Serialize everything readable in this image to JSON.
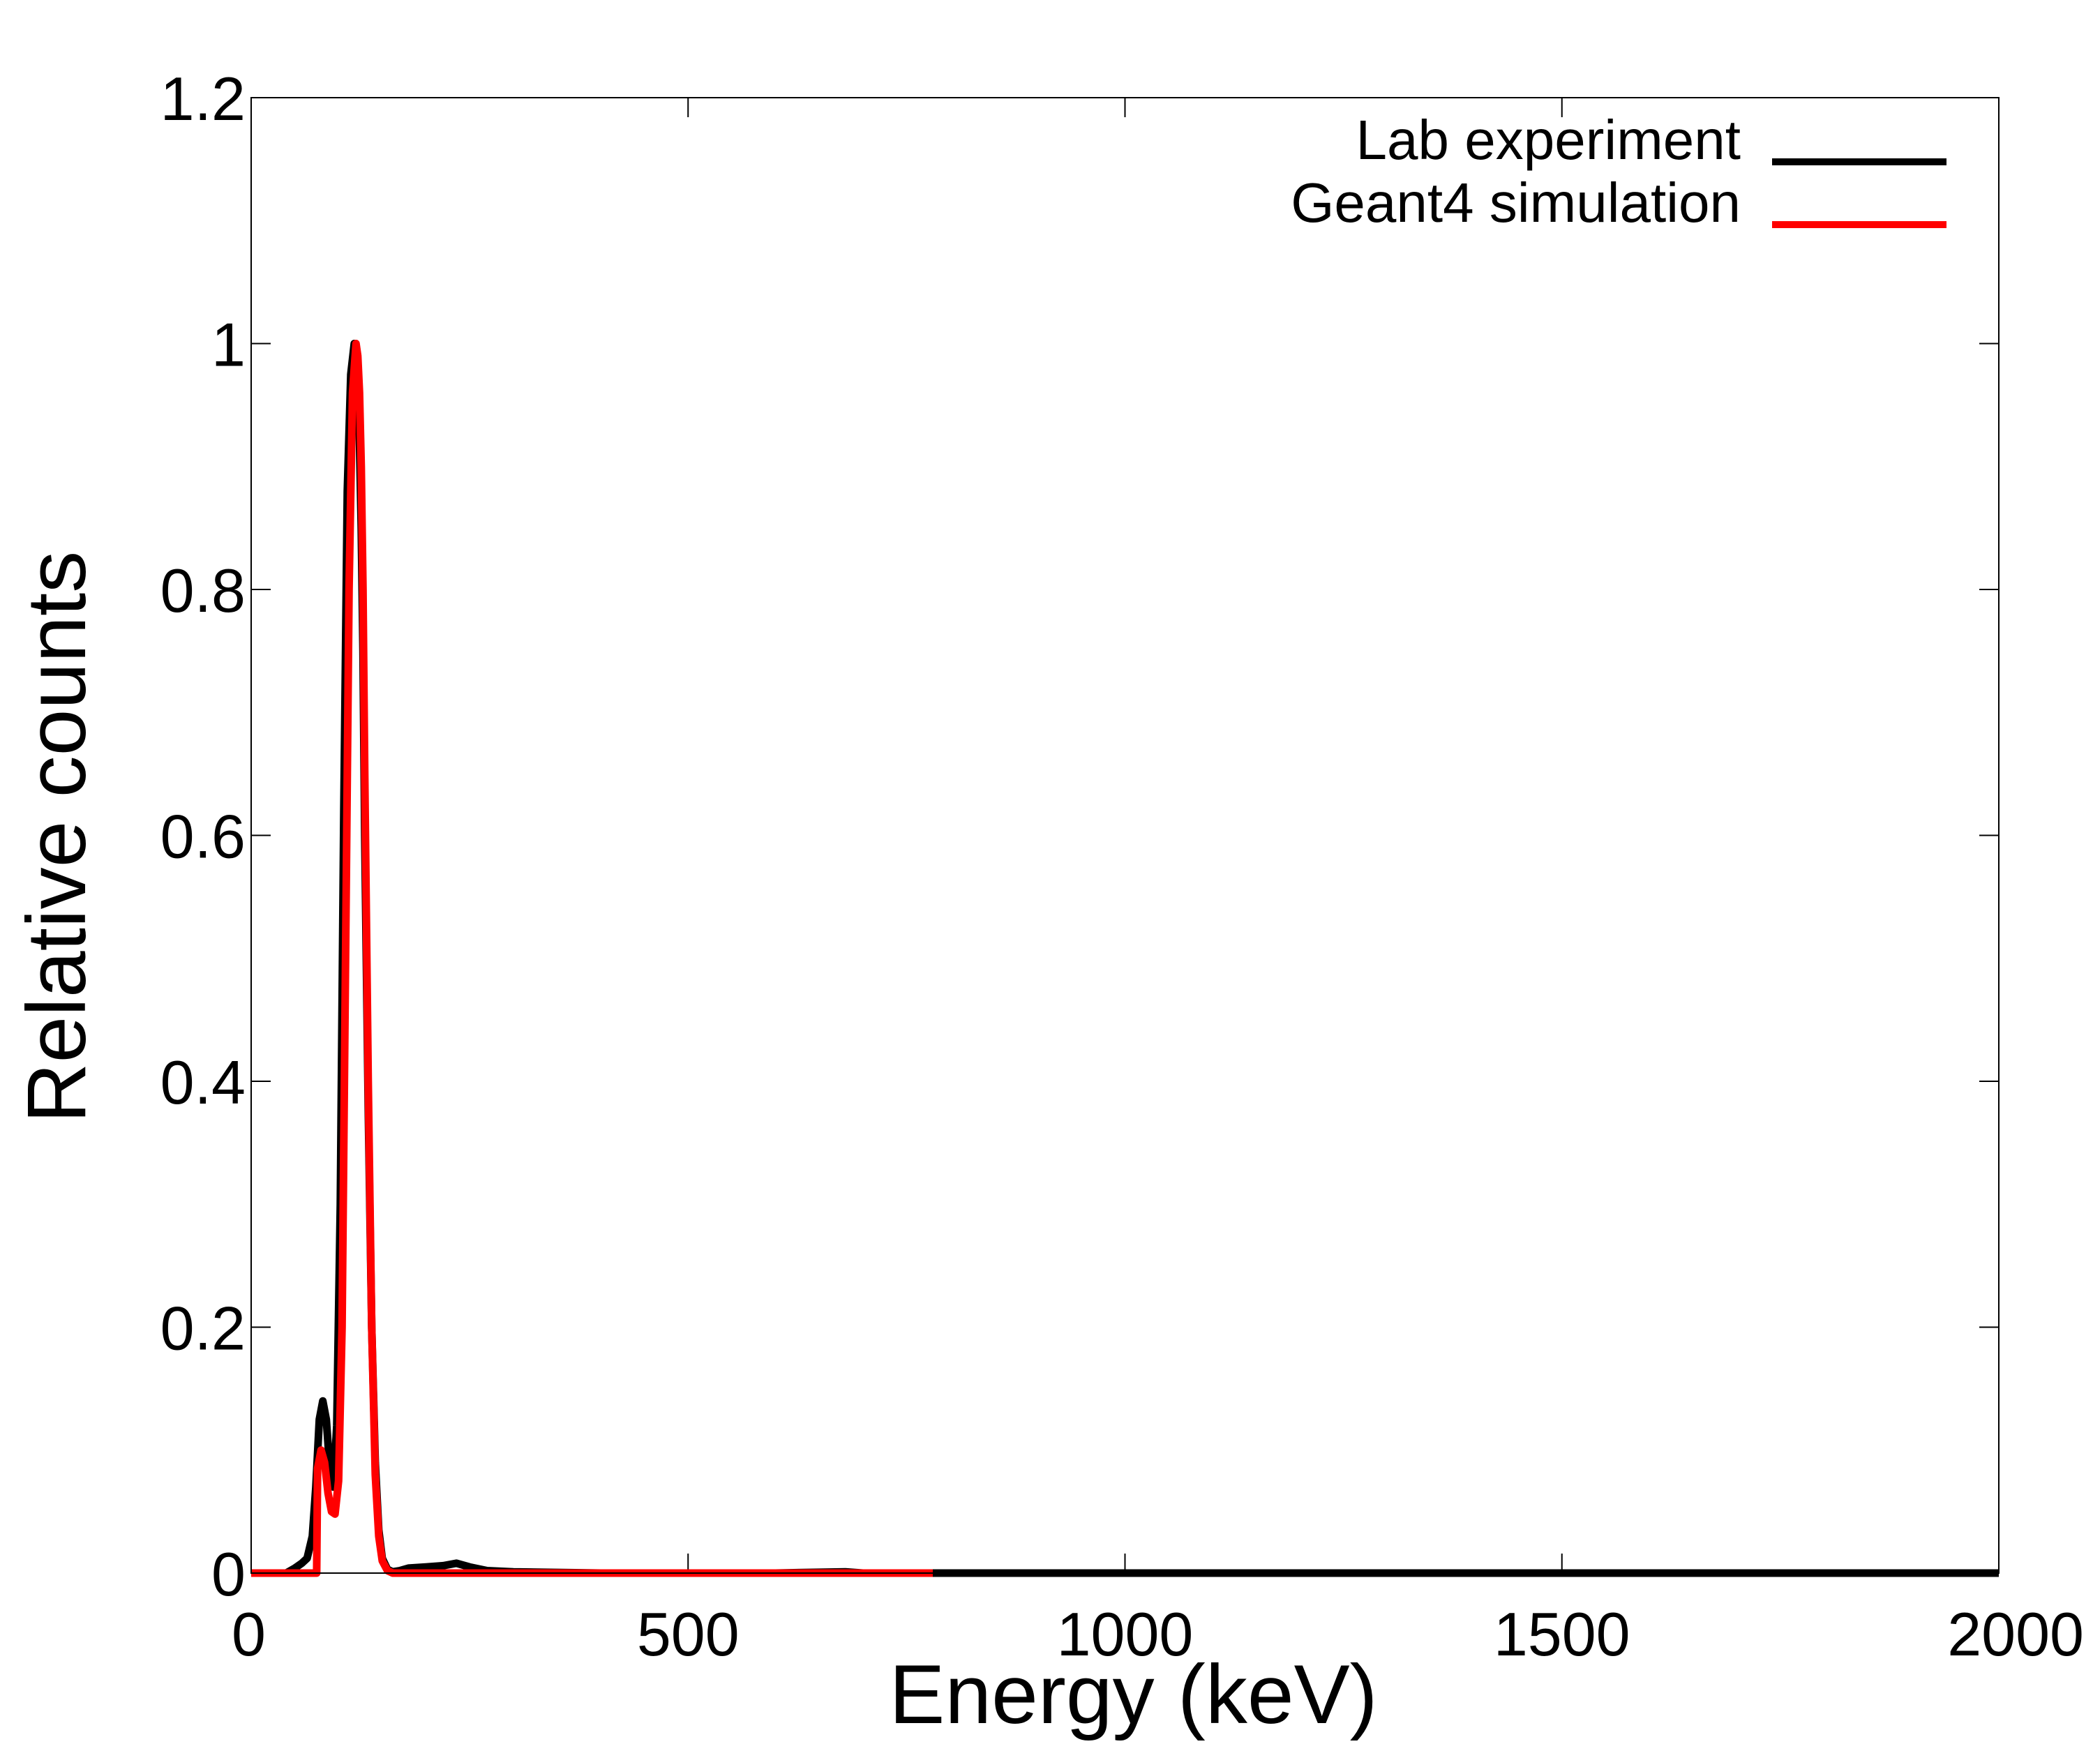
{
  "chart_data": {
    "type": "line",
    "title": "",
    "xlabel": "Energy (keV)",
    "ylabel": "Relative counts",
    "xlim": [
      0,
      2000
    ],
    "ylim": [
      0,
      1.2
    ],
    "xticks": [
      0,
      500,
      1000,
      1500,
      2000
    ],
    "xtick_labels": [
      "0",
      "500",
      "1000",
      "1500",
      "2000"
    ],
    "yticks": [
      0,
      0.2,
      0.4,
      0.6,
      0.8,
      1,
      1.2
    ],
    "ytick_labels": [
      "0",
      "0.2",
      "0.4",
      "0.6",
      "0.8",
      "1",
      "1.2"
    ],
    "grid": false,
    "legend": {
      "position": "top-right"
    },
    "series": [
      {
        "name": "Lab experiment",
        "color": "#000000",
        "x": [
          0,
          40,
          50,
          58,
          64,
          70,
          74,
          78,
          82,
          86,
          90,
          94,
          98,
          102,
          106,
          110,
          114,
          118,
          120,
          122,
          124,
          126,
          128,
          130,
          134,
          138,
          142,
          146,
          150,
          156,
          162,
          170,
          180,
          200,
          220,
          235,
          250,
          270,
          300,
          400,
          500,
          600,
          680,
          700,
          800,
          1000,
          1500,
          2000
        ],
        "y": [
          0,
          0,
          0.004,
          0.008,
          0.012,
          0.03,
          0.07,
          0.125,
          0.14,
          0.125,
          0.085,
          0.07,
          0.12,
          0.3,
          0.62,
          0.88,
          0.975,
          1.0,
          0.995,
          0.975,
          0.92,
          0.85,
          0.75,
          0.6,
          0.38,
          0.2,
          0.09,
          0.035,
          0.012,
          0.003,
          0.001,
          0.002,
          0.004,
          0.005,
          0.006,
          0.008,
          0.005,
          0.002,
          0.001,
          0,
          0,
          0,
          0.001,
          0,
          0,
          0,
          0,
          0
        ]
      },
      {
        "name": "Geant4 simulation",
        "color": "#ff0000",
        "x": [
          0,
          70,
          75,
          76,
          80,
          84,
          88,
          92,
          96,
          100,
          104,
          108,
          112,
          116,
          120,
          122,
          124,
          126,
          128,
          130,
          134,
          138,
          142,
          146,
          150,
          156,
          162,
          200,
          300,
          500,
          700,
          780
        ],
        "y": [
          0,
          0,
          0,
          0.085,
          0.1,
          0.09,
          0.065,
          0.05,
          0.048,
          0.075,
          0.2,
          0.5,
          0.8,
          0.96,
          1.0,
          0.99,
          0.96,
          0.9,
          0.8,
          0.65,
          0.4,
          0.2,
          0.08,
          0.03,
          0.01,
          0.002,
          0,
          0,
          0,
          0,
          0,
          0
        ]
      }
    ]
  }
}
